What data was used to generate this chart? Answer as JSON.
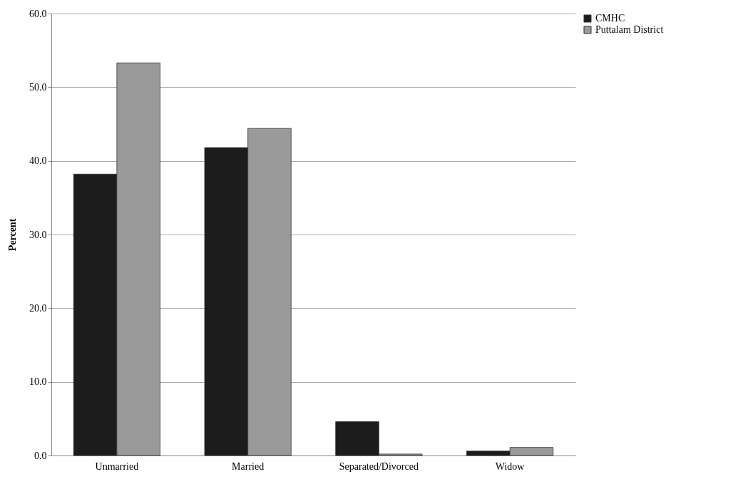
{
  "chart_data": {
    "type": "bar",
    "ylabel": "Percent",
    "categories": [
      "Unmarried",
      "Married",
      "Separated/Divorced",
      "Widow"
    ],
    "series": [
      {
        "name": "CMHC",
        "color": "#1c1c1c",
        "values": [
          38.2,
          41.8,
          4.6,
          0.6
        ]
      },
      {
        "name": "Puttalam District",
        "color": "#9a9a9a",
        "values": [
          53.3,
          44.4,
          0.2,
          1.1
        ]
      }
    ],
    "ylim": [
      0,
      60
    ],
    "yticks": [
      {
        "value": 0,
        "label": "0.0"
      },
      {
        "value": 10,
        "label": "10.0"
      },
      {
        "value": 20,
        "label": "20.0"
      },
      {
        "value": 30,
        "label": "30.0"
      },
      {
        "value": 40,
        "label": "40.0"
      },
      {
        "value": 50,
        "label": "50.0"
      },
      {
        "value": 60,
        "label": "60.0"
      }
    ],
    "grid": "y",
    "legend": "right"
  }
}
